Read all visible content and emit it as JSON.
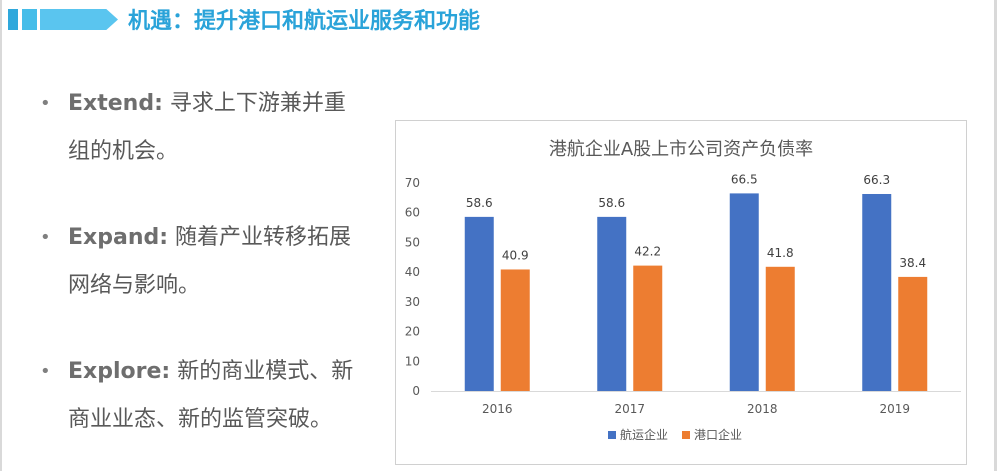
{
  "header": {
    "title": "机遇：提升港口和航运业服务和功能"
  },
  "bullets": [
    {
      "keyword": "Extend:",
      "line1": " 寻求上下游兼并重",
      "line2": "组的机会。"
    },
    {
      "keyword": "Expand:",
      "line1": " 随着产业转移拓展",
      "line2": "网络与影响。"
    },
    {
      "keyword": "Explore:",
      "line1": " 新的商业模式、新",
      "line2": "商业业态、新的监管突破。"
    }
  ],
  "chart_data": {
    "type": "bar",
    "title": "港航企业A股上市公司资产负债率",
    "categories": [
      "2016",
      "2017",
      "2018",
      "2019"
    ],
    "series": [
      {
        "name": "航运企业",
        "values": [
          58.6,
          58.6,
          66.5,
          66.3
        ],
        "color": "#4472c4"
      },
      {
        "name": "港口企业",
        "values": [
          40.9,
          42.2,
          41.8,
          38.4
        ],
        "color": "#ed7d31"
      }
    ],
    "ylim": [
      0,
      70
    ],
    "yticks": [
      0,
      10,
      20,
      30,
      40,
      50,
      60,
      70
    ],
    "grid": false,
    "legend": "bottom",
    "data_labels": true
  }
}
